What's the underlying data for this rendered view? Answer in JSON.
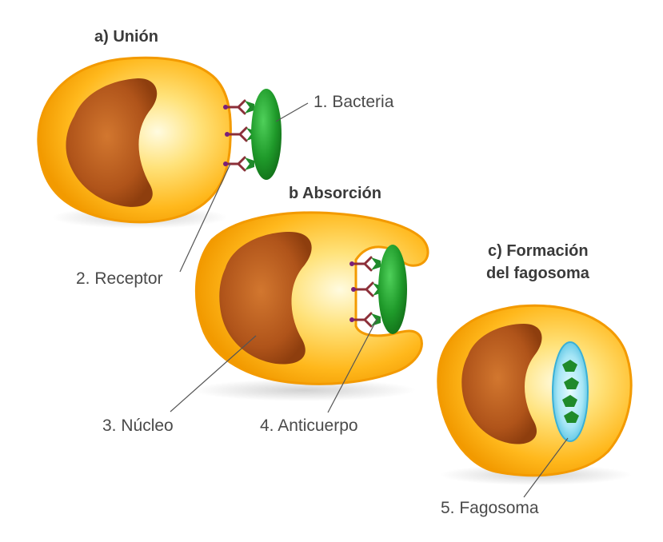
{
  "stages": {
    "a": "a) Unión",
    "b": "b Absorción",
    "c_line1": "c) Formación",
    "c_line2": "del fagosoma"
  },
  "labels": {
    "bacteria": "1. Bacteria",
    "receptor": "2. Receptor",
    "nucleo": "3. Núcleo",
    "anticuerpo": "4. Anticuerpo",
    "fagosoma": "5. Fagosoma"
  },
  "colors": {
    "cell_outer": "#f5a000",
    "cell_inner": "#ffe98a",
    "nucleus": "#b3520f",
    "bacteria": "#1f9a2a",
    "phagosome": "#7fd4ec",
    "receptor": "#8c2f39",
    "receptor_tip": "#7a1f7a"
  }
}
